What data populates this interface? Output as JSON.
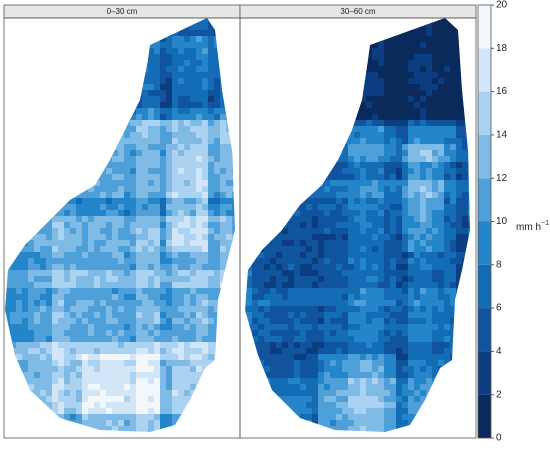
{
  "panels": [
    {
      "title": "0–30 cm"
    },
    {
      "title": "30–60 cm"
    }
  ],
  "colorbar": {
    "ticks": [
      0,
      2,
      4,
      6,
      8,
      10,
      12,
      14,
      16,
      18,
      20
    ],
    "colors": [
      "#0a2a5c",
      "#0c3d80",
      "#0f549c",
      "#146cb5",
      "#2486c8",
      "#4fa0d8",
      "#80bbe6",
      "#abd2f0",
      "#d2e6f7",
      "#f2f7fc"
    ],
    "unit": "mm h",
    "unit_exponent": "−1"
  }
}
